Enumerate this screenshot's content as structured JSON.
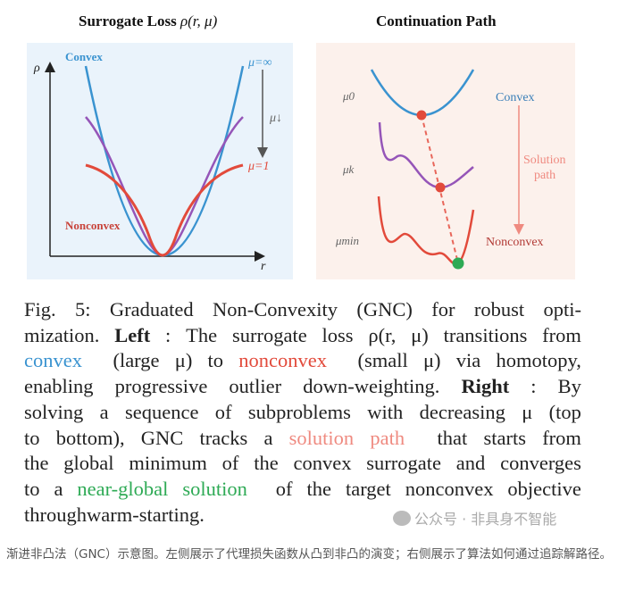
{
  "left_panel": {
    "title": "Surrogate Loss",
    "title_math": "ρ(r, μ)",
    "y_axis_label": "ρ",
    "x_axis_label": "r",
    "label_convex": "Convex",
    "label_nonconvex": "Nonconvex",
    "label_mu_inf": "μ=∞",
    "label_mu_down": "μ↓",
    "label_mu_one": "μ=1",
    "colors": {
      "convex": "#3a93d0",
      "mid": "#9555b8",
      "nonconvex": "#e24a3b",
      "background": "#eaf3fb"
    }
  },
  "right_panel": {
    "title": "Continuation Path",
    "label_mu0": "μ0",
    "label_muk": "μk",
    "label_mumin": "μmin",
    "label_convex": "Convex",
    "label_solution_path": [
      "Solution",
      "path"
    ],
    "label_nonconvex": "Nonconvex",
    "colors": {
      "background": "#fcf1ec",
      "path": "#ef8a80",
      "solution": "#2eaa55"
    }
  },
  "caption": {
    "lines": [
      [
        {
          "t": "Fig. 5: Graduated Non-Convexity (GNC) for robust opti-"
        }
      ],
      [
        {
          "t": "mization. "
        },
        {
          "t": "Left",
          "s": "bold"
        },
        {
          "t": ": The surrogate loss ρ(r, μ) transitions from"
        }
      ],
      [
        {
          "t": "convex",
          "c": "#3a93d0"
        },
        {
          "t": " (large μ) to "
        },
        {
          "t": "nonconvex",
          "c": "#e24a3b"
        },
        {
          "t": " (small μ) via homotopy,"
        }
      ],
      [
        {
          "t": "enabling progressive outlier down-weighting. "
        },
        {
          "t": "Right",
          "s": "bold"
        },
        {
          "t": ": By"
        }
      ],
      [
        {
          "t": "solving a sequence of subproblems with decreasing μ (top"
        }
      ],
      [
        {
          "t": "to bottom), GNC tracks a "
        },
        {
          "t": "solution path",
          "c": "#ef8a80"
        },
        {
          "t": " that starts from"
        }
      ],
      [
        {
          "t": "the global minimum of the convex surrogate and converges"
        }
      ],
      [
        {
          "t": "to a "
        },
        {
          "t": "near-global solution",
          "c": "#2eaa55"
        },
        {
          "t": " of the target nonconvex objective"
        }
      ],
      [
        {
          "t": "through warm-starting."
        }
      ]
    ]
  },
  "watermark": "公众号 · 非具身不智能",
  "chinese_caption": "渐进非凸法（GNC）示意图。左侧展示了代理损失函数从凸到非凸的演变；右侧展示了算法如何通过追踪解路径。"
}
